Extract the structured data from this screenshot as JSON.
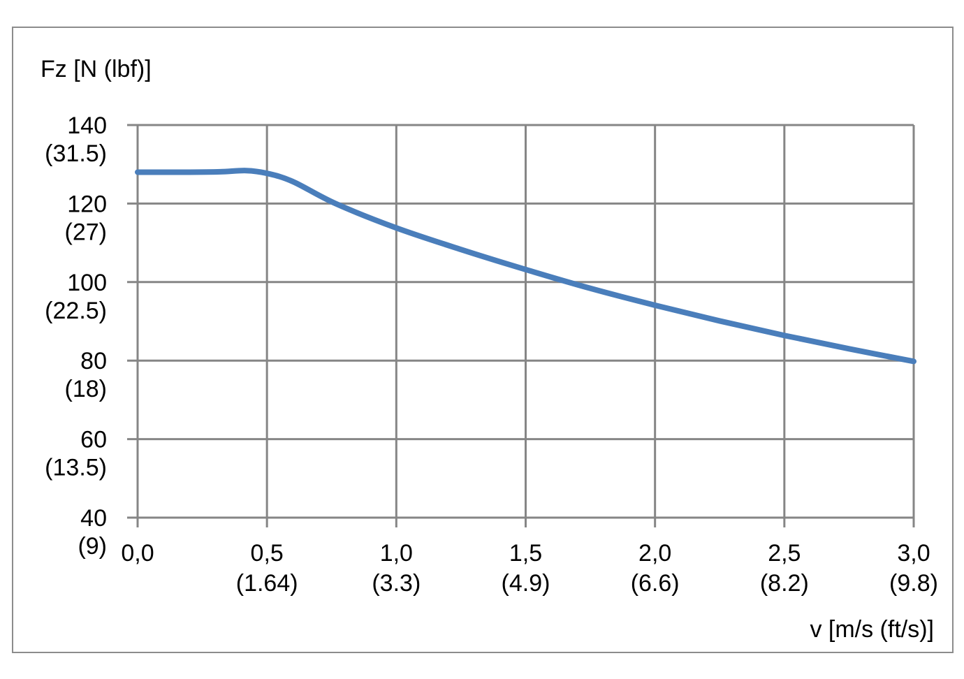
{
  "chart_data": {
    "type": "line",
    "ylabel": "Fz [N (lbf)]",
    "xlabel": "v [m/s (ft/s)]",
    "xlim": [
      0,
      3.0
    ],
    "ylim": [
      40,
      140
    ],
    "grid": true,
    "x_ticks": [
      {
        "value": 0.0,
        "label": "0,0",
        "sub": ""
      },
      {
        "value": 0.5,
        "label": "0,5",
        "sub": "(1.64)"
      },
      {
        "value": 1.0,
        "label": "1,0",
        "sub": "(3.3)"
      },
      {
        "value": 1.5,
        "label": "1,5",
        "sub": "(4.9)"
      },
      {
        "value": 2.0,
        "label": "2,0",
        "sub": "(6.6)"
      },
      {
        "value": 2.5,
        "label": "2,5",
        "sub": "(8.2)"
      },
      {
        "value": 3.0,
        "label": "3,0",
        "sub": "(9.8)"
      }
    ],
    "y_ticks": [
      {
        "value": 140,
        "label": "140",
        "sub": "(31.5)"
      },
      {
        "value": 120,
        "label": "120",
        "sub": "(27)"
      },
      {
        "value": 100,
        "label": "100",
        "sub": "(22.5)"
      },
      {
        "value": 80,
        "label": "80",
        "sub": "(18)"
      },
      {
        "value": 60,
        "label": "60",
        "sub": "(13.5)"
      },
      {
        "value": 40,
        "label": "40",
        "sub": "(9)"
      }
    ],
    "series": [
      {
        "color": "#4a7ebb",
        "x": [
          0.0,
          0.2,
          0.32,
          0.42,
          0.5,
          0.6,
          0.765,
          1.0,
          1.25,
          1.5,
          1.75,
          2.0,
          2.25,
          2.5,
          2.75,
          3.0
        ],
        "y": [
          128.0,
          128.0,
          128.1,
          128.4,
          127.7,
          125.6,
          120.0,
          113.8,
          108.3,
          103.2,
          98.4,
          94.1,
          90.1,
          86.4,
          83.0,
          79.8
        ]
      }
    ]
  }
}
